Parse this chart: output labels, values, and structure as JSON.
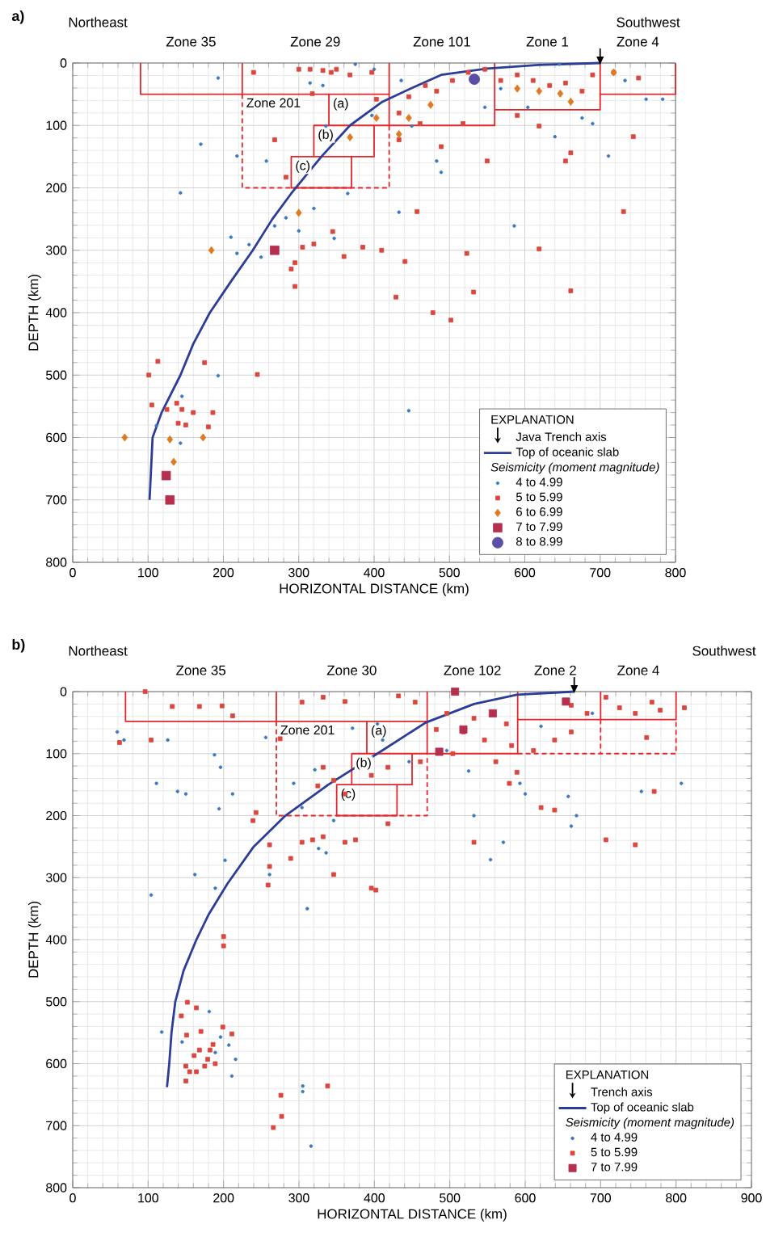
{
  "chart_data": [
    {
      "type": "scatter",
      "title": "a)",
      "xlabel": "HORIZONTAL DISTANCE (km)",
      "ylabel": "DEPTH (km)",
      "xlim": [
        0,
        800
      ],
      "ylim": [
        800,
        0
      ],
      "xticks": [
        0,
        100,
        200,
        300,
        400,
        500,
        600,
        700,
        800
      ],
      "yticks": [
        0,
        100,
        200,
        300,
        400,
        500,
        600,
        700,
        800
      ],
      "grid": true,
      "legend": "bottom right",
      "legend_title": "EXPLANATION",
      "annotations": [
        "Northeast",
        "Southwest",
        "Seismicity (moment magnitude)",
        "Zone 35",
        "Zone 29",
        "Zone 201",
        "(a)",
        "(b)",
        "(c)",
        "Zone 101",
        "Zone 1",
        "Zone 4"
      ],
      "series": [
        {
          "type": "line",
          "color": "#e3262b",
          "line_style": "solid",
          "x": [
            90,
            90,
            225,
            225
          ],
          "values": [
            0,
            50,
            50,
            0
          ]
        },
        {
          "type": "line",
          "color": "#e3262b",
          "line_style": "solid",
          "x": [
            225,
            420,
            420
          ],
          "values": [
            50,
            50,
            0
          ]
        },
        {
          "type": "line",
          "color": "#e3262b",
          "line_style": "dashed",
          "x": [
            225,
            225,
            420,
            420
          ],
          "values": [
            50,
            200,
            200,
            100
          ]
        },
        {
          "type": "line",
          "color": "#e3262b",
          "line_style": "solid",
          "x": [
            340,
            340,
            420,
            420
          ],
          "values": [
            50,
            100,
            100,
            50
          ]
        },
        {
          "type": "line",
          "color": "#e3262b",
          "line_style": "solid",
          "x": [
            340,
            320,
            320,
            400,
            400
          ],
          "values": [
            100,
            100,
            150,
            150,
            100
          ]
        },
        {
          "type": "line",
          "color": "#e3262b",
          "line_style": "solid",
          "x": [
            320,
            290,
            290,
            370,
            370
          ],
          "values": [
            150,
            150,
            200,
            200,
            150
          ]
        },
        {
          "type": "line",
          "color": "#e3262b",
          "line_style": "solid",
          "x": [
            420,
            560,
            560
          ],
          "values": [
            100,
            100,
            0
          ]
        },
        {
          "type": "line",
          "color": "#e3262b",
          "line_style": "solid",
          "x": [
            560,
            700,
            700
          ],
          "values": [
            75,
            75,
            0
          ]
        },
        {
          "type": "line",
          "color": "#e3262b",
          "line_style": "solid",
          "x": [
            700,
            800,
            800
          ],
          "values": [
            50,
            50,
            0
          ]
        },
        {
          "name": "Java Trench axis",
          "color": "#000000",
          "marker": "triangle",
          "x": [
            700
          ],
          "values": [
            0
          ]
        },
        {
          "type": "line",
          "name": "Top of oceanic slab",
          "color": "#2c3d97",
          "line_style": "solid",
          "x": [
            102,
            104,
            106,
            118,
            143,
            160,
            182,
            210,
            239,
            265,
            290,
            330,
            368,
            411,
            450,
            489,
            550,
            618,
            700
          ],
          "values": [
            700,
            650,
            600,
            560,
            500,
            450,
            400,
            350,
            300,
            250,
            209,
            150,
            100,
            62,
            40,
            19,
            9,
            3,
            0
          ]
        },
        {
          "name": "4 to 4.99",
          "color": "#3a78c2",
          "marker": "circle",
          "x": [
            210,
            218,
            234,
            250,
            268,
            283,
            300,
            307,
            320,
            347,
            433,
            586,
            193,
            145,
            143,
            111,
            446,
            365,
            193,
            332,
            315,
            218,
            170,
            143,
            257,
            336,
            375,
            397,
            450,
            483,
            489,
            547,
            568,
            604,
            640,
            676,
            711,
            733,
            761,
            783,
            690,
            646,
            400,
            436
          ],
          "values": [
            279,
            305,
            291,
            311,
            261,
            248,
            269,
            null,
            233,
            281,
            239,
            261,
            501,
            534,
            609,
            581,
            557,
            209,
            24,
            36,
            32,
            149,
            130,
            208,
            157,
            101,
            2,
            84,
            101,
            157,
            175,
            71,
            41,
            71,
            118,
            88,
            149,
            28,
            58,
            58,
            97,
            2,
            10,
            28
          ]
        },
        {
          "name": "5 to 5.99",
          "color": "#d9473f",
          "marker": "square",
          "x": [
            101,
            113,
            105,
            125,
            138,
            145,
            150,
            140,
            160,
            175,
            186,
            180,
            245,
            429,
            478,
            502,
            523,
            532,
            619,
            661,
            731,
            457,
            441,
            295,
            290,
            295,
            305,
            320,
            345,
            360,
            385,
            410,
            315,
            332,
            350,
            368,
            397,
            240,
            403,
            433,
            446,
            468,
            483,
            504,
            525,
            547,
            568,
            590,
            611,
            633,
            654,
            676,
            690,
            718,
            751,
            744,
            661,
            654,
            550,
            590,
            619,
            518,
            461,
            433,
            489,
            283,
            268,
            318,
            300,
            343
          ],
          "values": [
            500,
            478,
            548,
            555,
            545,
            555,
            580,
            577,
            560,
            480,
            560,
            583,
            499,
            375,
            400,
            412,
            305,
            367,
            298,
            365,
            238,
            238,
            318,
            358,
            330,
            320,
            295,
            290,
            270,
            310,
            295,
            300,
            10,
            12,
            10,
            19,
            15,
            15,
            58,
            80,
            54,
            36,
            45,
            28,
            15,
            10,
            28,
            19,
            28,
            36,
            32,
            45,
            19,
            15,
            24,
            118,
            144,
            157,
            157,
            84,
            101,
            97,
            97,
            123,
            134,
            183,
            123,
            49,
            10,
            15
          ]
        },
        {
          "name": "6 to 6.99",
          "color": "#e07a20",
          "marker": "diamond",
          "x": [
            184,
            300,
            69,
            129,
            173,
            134,
            403,
            433,
            446,
            661,
            619,
            590,
            647,
            718,
            475,
            368
          ],
          "values": [
            300,
            240,
            600,
            603,
            600,
            639,
            88,
            114,
            88,
            62,
            45,
            41,
            49,
            15,
            67,
            119
          ]
        },
        {
          "name": "7 to 7.99",
          "color": "#b5304f",
          "marker": "square",
          "x": [
            268,
            124,
            129
          ],
          "values": [
            300,
            661,
            700
          ]
        },
        {
          "name": "8 to 8.99",
          "color": "#5b4ea6",
          "marker": "circle",
          "x": [
            533
          ],
          "values": [
            26
          ]
        }
      ]
    },
    {
      "type": "scatter",
      "title": "b)",
      "xlabel": "HORIZONTAL DISTANCE (km)",
      "ylabel": "DEPTH (km)",
      "xlim": [
        0,
        900
      ],
      "ylim": [
        800,
        0
      ],
      "xticks": [
        0,
        100,
        200,
        300,
        400,
        500,
        600,
        700,
        800,
        900
      ],
      "yticks": [
        0,
        100,
        200,
        300,
        400,
        500,
        600,
        700,
        800
      ],
      "grid": true,
      "legend": "bottom right",
      "legend_title": "EXPLANATION",
      "annotations": [
        "Northeast",
        "Southwest",
        "Seismicity (moment magnitude)",
        "Zone 35",
        "Zone 30",
        "Zone 201",
        "(a)",
        "(b)",
        "(c)",
        "Zone 102",
        "Zone 2",
        "Zone 4"
      ],
      "series": [
        {
          "type": "line",
          "color": "#e3262b",
          "line_style": "solid",
          "x": [
            70,
            70,
            270,
            270
          ],
          "values": [
            0,
            48,
            48,
            0
          ]
        },
        {
          "type": "line",
          "color": "#e3262b",
          "line_style": "solid",
          "x": [
            270,
            470,
            470
          ],
          "values": [
            48,
            48,
            0
          ]
        },
        {
          "type": "line",
          "color": "#e3262b",
          "line_style": "dashed",
          "x": [
            270,
            270,
            470,
            470
          ],
          "values": [
            48,
            200,
            200,
            100
          ]
        },
        {
          "type": "line",
          "color": "#e3262b",
          "line_style": "solid",
          "x": [
            390,
            390,
            470,
            470
          ],
          "values": [
            48,
            100,
            100,
            48
          ]
        },
        {
          "type": "line",
          "color": "#e3262b",
          "line_style": "solid",
          "x": [
            390,
            370,
            370,
            450,
            450
          ],
          "values": [
            100,
            100,
            150,
            150,
            100
          ]
        },
        {
          "type": "line",
          "color": "#e3262b",
          "line_style": "solid",
          "x": [
            370,
            350,
            350,
            430,
            430
          ],
          "values": [
            150,
            150,
            200,
            200,
            150
          ]
        },
        {
          "type": "line",
          "color": "#e3262b",
          "line_style": "solid",
          "x": [
            470,
            590,
            590
          ],
          "values": [
            100,
            100,
            0
          ]
        },
        {
          "type": "line",
          "color": "#e3262b",
          "line_style": "solid",
          "x": [
            590,
            700,
            700
          ],
          "values": [
            45,
            45,
            0
          ]
        },
        {
          "type": "line",
          "color": "#e3262b",
          "line_style": "solid",
          "x": [
            700,
            800,
            800
          ],
          "values": [
            45,
            45,
            0
          ]
        },
        {
          "type": "line",
          "color": "#e3262b",
          "line_style": "dashed",
          "x": [
            590,
            800,
            800
          ],
          "values": [
            100,
            100,
            45
          ]
        },
        {
          "type": "line",
          "color": "#e3262b",
          "line_style": "dashed",
          "x": [
            700,
            700
          ],
          "values": [
            45,
            100
          ]
        },
        {
          "name": "Trench axis",
          "color": "#000000",
          "marker": "triangle",
          "x": [
            665
          ],
          "values": [
            0
          ]
        },
        {
          "type": "line",
          "name": "Top of oceanic slab",
          "color": "#2c3d97",
          "line_style": "solid",
          "x": [
            125,
            128,
            131,
            136,
            147,
            164,
            180,
            205,
            240,
            282,
            339,
            404,
            468,
            532,
            589,
            665
          ],
          "values": [
            638,
            600,
            550,
            500,
            450,
            400,
            360,
            310,
            250,
            200,
            150,
            100,
            50,
            20,
            5,
            0
          ]
        },
        {
          "name": "4 to 4.99",
          "color": "#3a78c2",
          "marker": "circle",
          "x": [
            59,
            68,
            126,
            111,
            139,
            150,
            188,
            196,
            194,
            202,
            162,
            189,
            212,
            256,
            261,
            293,
            304,
            321,
            326,
            336,
            346,
            361,
            371,
            404,
            411,
            446,
            496,
            525,
            532,
            554,
            571,
            593,
            600,
            621,
            657,
            661,
            668,
            689,
            754,
            771,
            807,
            311,
            104,
            311,
            118,
            145,
            181,
            196,
            189,
            207,
            216,
            211,
            305,
            305,
            316
          ],
          "values": [
            65,
            78,
            78,
            148,
            161,
            165,
            102,
            122,
            189,
            272,
            295,
            317,
            165,
            74,
            295,
            148,
            187,
            126,
            253,
            260,
            208,
            null,
            59,
            52,
            78,
            113,
            95,
            128,
            200,
            271,
            243,
            148,
            165,
            56,
            169,
            217,
            200,
            35,
            161,
            null,
            148,
            null,
            328,
            350,
            549,
            565,
            516,
            557,
            582,
            570,
            593,
            620,
            636,
            645,
            733
          ]
        },
        {
          "name": "5 to 5.99",
          "color": "#d9473f",
          "marker": "square",
          "x": [
            200,
            200,
            152,
            164,
            144,
            151,
            170,
            199,
            211,
            186,
            150,
            155,
            150,
            164,
            168,
            179,
            189,
            175,
            161,
            182,
            338,
            276,
            266,
            277,
            402,
            96,
            132,
            168,
            198,
            212,
            104,
            62,
            275,
            243,
            239,
            261,
            261,
            259,
            289,
            304,
            318,
            332,
            346,
            361,
            375,
            396,
            418,
            332,
            325,
            346,
            361,
            396,
            418,
            304,
            332,
            361,
            432,
            454,
            482,
            496,
            518,
            532,
            546,
            575,
            582,
            561,
            579,
            589,
            532,
            621,
            639,
            611,
            639,
            661,
            661,
            682,
            707,
            725,
            746,
            768,
            779,
            761,
            811,
            707,
            746,
            771,
            504,
            461
          ],
          "values": [
            395,
            410,
            501,
            510,
            523,
            554,
            548,
            541,
            552,
            569,
            604,
            613,
            628,
            613,
            578,
            593,
            600,
            604,
            587,
            578,
            636,
            651,
            703,
            685,
            320,
            0,
            24,
            24,
            23,
            39,
            78,
            82,
            76,
            195,
            208,
            247,
            282,
            312,
            269,
            243,
            239,
            234,
            295,
            243,
            239,
            317,
            213,
            122,
            152,
            143,
            165,
            135,
            122,
            17,
            9,
            16,
            7,
            17,
            61,
            35,
            65,
            43,
            78,
            52,
            87,
            113,
            148,
            130,
            243,
            187,
            191,
            95,
            78,
            65,
            22,
            35,
            9,
            26,
            35,
            17,
            30,
            74,
            26,
            239,
            247,
            161,
            100,
            113
          ]
        },
        {
          "name": "7 to 7.99",
          "color": "#b5304f",
          "marker": "square",
          "x": [
            507,
            518,
            557,
            654,
            486
          ],
          "values": [
            0,
            61,
            35,
            16,
            97
          ]
        }
      ]
    }
  ]
}
